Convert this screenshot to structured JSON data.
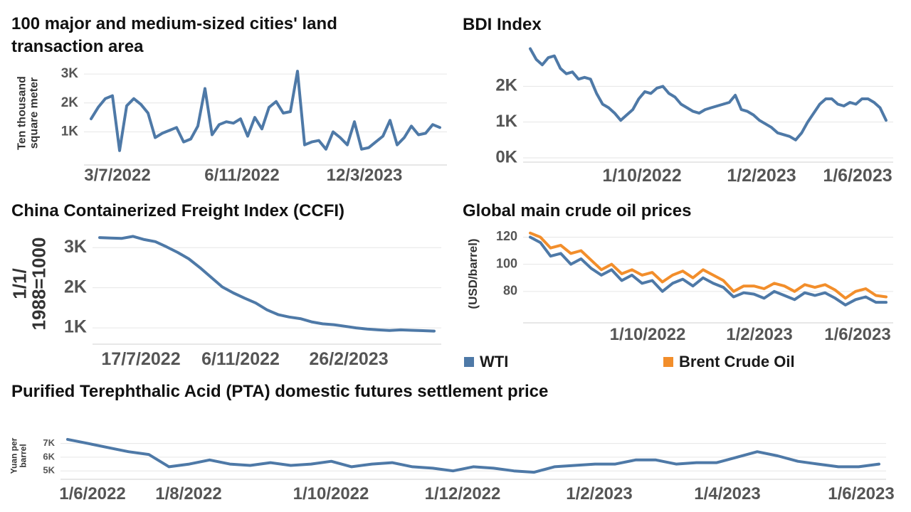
{
  "colors": {
    "primary": "#4e79a7",
    "secondary": "#f28e2b",
    "grid": "#e6e6e6",
    "axis": "#cfcfcf"
  },
  "chart_data": [
    {
      "id": "land",
      "type": "line",
      "title": "100 major and medium-sized cities' land transaction area",
      "ylabel": "Ten thousand square meter",
      "ylim": [
        0,
        3300
      ],
      "yticks": [
        1000,
        2000,
        3000
      ],
      "ytick_labels": [
        "1K",
        "2K",
        "3K"
      ],
      "xtick_labels": [
        "3/7/2022",
        "6/11/2022",
        "12/3/2023"
      ],
      "series": [
        {
          "values": [
            1450,
            1850,
            2150,
            2250,
            350,
            1900,
            2150,
            1950,
            1650,
            800,
            950,
            1050,
            1150,
            650,
            750,
            1200,
            2500,
            900,
            1250,
            1350,
            1300,
            1450,
            850,
            1500,
            1100,
            1850,
            2050,
            1650,
            1700,
            3100,
            550,
            650,
            700,
            400,
            1000,
            800,
            550,
            1350,
            400,
            450,
            650,
            850,
            1400,
            550,
            800,
            1200,
            900,
            950,
            1250,
            1150
          ]
        }
      ]
    },
    {
      "id": "bdi",
      "type": "line",
      "title": "BDI Index",
      "ylim": [
        0,
        3100
      ],
      "yticks": [
        0,
        1000,
        2000
      ],
      "ytick_labels": [
        "0K",
        "1K",
        "2K"
      ],
      "xtick_labels": [
        "1/10/2022",
        "1/2/2023",
        "1/6/2023"
      ],
      "series": [
        {
          "values": [
            3050,
            2750,
            2600,
            2800,
            2850,
            2500,
            2350,
            2400,
            2200,
            2250,
            2200,
            1800,
            1500,
            1400,
            1250,
            1050,
            1200,
            1350,
            1650,
            1850,
            1800,
            1950,
            2000,
            1800,
            1700,
            1500,
            1400,
            1300,
            1250,
            1350,
            1400,
            1450,
            1500,
            1550,
            1750,
            1350,
            1300,
            1200,
            1050,
            950,
            850,
            700,
            650,
            600,
            500,
            700,
            1000,
            1250,
            1500,
            1650,
            1650,
            1500,
            1450,
            1550,
            1500,
            1650,
            1650,
            1550,
            1400,
            1050
          ]
        }
      ]
    },
    {
      "id": "ccfi",
      "type": "line",
      "title": "China Containerized Freight Index (CCFI)",
      "ylabel": "1/1/ 1988=1000",
      "ylim": [
        700,
        3500
      ],
      "yticks": [
        1000,
        2000,
        3000
      ],
      "ytick_labels": [
        "1K",
        "2K",
        "3K"
      ],
      "xtick_labels": [
        "17/7/2022",
        "6/11/2022",
        "26/2/2023"
      ],
      "series": [
        {
          "values": [
            3250,
            3240,
            3230,
            3280,
            3200,
            3150,
            3020,
            2880,
            2720,
            2500,
            2260,
            2020,
            1870,
            1740,
            1620,
            1450,
            1330,
            1270,
            1230,
            1150,
            1100,
            1080,
            1040,
            1000,
            970,
            950,
            935,
            950,
            940,
            930,
            920
          ]
        }
      ]
    },
    {
      "id": "oil",
      "type": "line",
      "title": "Global main crude oil prices",
      "ylabel": "(USD/barrel)",
      "ylim": [
        60,
        126
      ],
      "yticks": [
        80,
        100,
        120
      ],
      "ytick_labels": [
        "80",
        "100",
        "120"
      ],
      "xtick_labels": [
        "1/10/2022",
        "1/2/2023",
        "1/6/2023"
      ],
      "series": [
        {
          "name": "WTI",
          "values": [
            120,
            116,
            106,
            108,
            100,
            104,
            97,
            92,
            96,
            88,
            92,
            86,
            88,
            80,
            86,
            89,
            84,
            90,
            86,
            83,
            76,
            79,
            78,
            75,
            80,
            77,
            74,
            79,
            77,
            79,
            75,
            70,
            74,
            76,
            72,
            72
          ]
        },
        {
          "name": "Brent Crude Oil",
          "values": [
            123,
            120,
            112,
            114,
            108,
            110,
            103,
            96,
            100,
            93,
            96,
            92,
            94,
            87,
            92,
            95,
            90,
            96,
            92,
            88,
            80,
            84,
            84,
            82,
            86,
            84,
            80,
            85,
            83,
            85,
            81,
            75,
            80,
            82,
            77,
            76
          ]
        }
      ]
    },
    {
      "id": "pta",
      "type": "line",
      "title": "Purified Terephthalic Acid (PTA) domestic futures settlement price",
      "ylabel": "Yuan per barrel",
      "ylim": [
        4700,
        7500
      ],
      "yticks": [
        5000,
        6000,
        7000
      ],
      "ytick_labels": [
        "5K",
        "6K",
        "7K"
      ],
      "xtick_labels": [
        "1/6/2022",
        "1/8/2022",
        "1/10/2022",
        "1/12/2022",
        "1/2/2023",
        "1/4/2023",
        "1/6/2023"
      ],
      "series": [
        {
          "values": [
            7300,
            7000,
            6700,
            6400,
            6200,
            5300,
            5500,
            5800,
            5500,
            5400,
            5600,
            5400,
            5500,
            5700,
            5300,
            5500,
            5600,
            5300,
            5200,
            5000,
            5300,
            5200,
            5000,
            4900,
            5300,
            5400,
            5500,
            5500,
            5800,
            5800,
            5500,
            5600,
            5600,
            6000,
            6400,
            6100,
            5700,
            5500,
            5300,
            5300,
            5500
          ]
        }
      ]
    }
  ]
}
